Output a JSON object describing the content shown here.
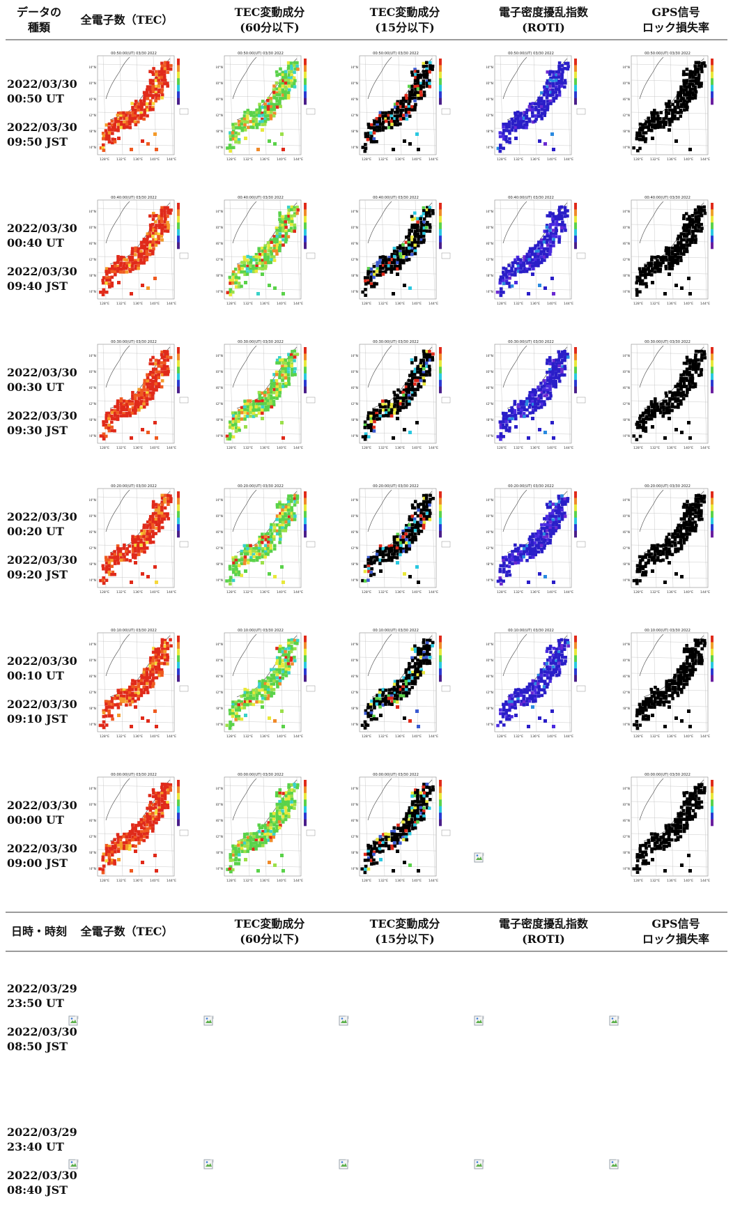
{
  "headers_top": [
    {
      "line1": "データの",
      "line2": "種類"
    },
    {
      "line1": "全電子数（TEC）",
      "line2": ""
    },
    {
      "line1": "TEC変動成分",
      "line2": "(60分以下)"
    },
    {
      "line1": "TEC変動成分",
      "line2": "(15分以下)"
    },
    {
      "line1": "電子密度擾乱指数",
      "line2": "(ROTI)"
    },
    {
      "line1": "GPS信号",
      "line2": "ロック損失率"
    }
  ],
  "headers_bottom": [
    {
      "line1": "日時・時刻",
      "line2": ""
    },
    {
      "line1": "全電子数（TEC）",
      "line2": ""
    },
    {
      "line1": "TEC変動成分",
      "line2": "(60分以下)"
    },
    {
      "line1": "TEC変動成分",
      "line2": "(15分以下)"
    },
    {
      "line1": "電子密度擾乱指数",
      "line2": "(ROTI)"
    },
    {
      "line1": "GPS信号",
      "line2": "ロック損失率"
    }
  ],
  "rows": [
    {
      "ut_date": "2022/03/30",
      "ut_time": "00:50 UT",
      "jst_date": "2022/03/30",
      "jst_time": "09:50 JST",
      "map_title": "00:50:00(UT) 03/30 2022"
    },
    {
      "ut_date": "2022/03/30",
      "ut_time": "00:40 UT",
      "jst_date": "2022/03/30",
      "jst_time": "09:40 JST",
      "map_title": "00:40:00(UT) 03/30 2022"
    },
    {
      "ut_date": "2022/03/30",
      "ut_time": "00:30 UT",
      "jst_date": "2022/03/30",
      "jst_time": "09:30 JST",
      "map_title": "00:30:00(UT) 03/30 2022"
    },
    {
      "ut_date": "2022/03/30",
      "ut_time": "00:20 UT",
      "jst_date": "2022/03/30",
      "jst_time": "09:20 JST",
      "map_title": "00:20:00(UT) 03/30 2022"
    },
    {
      "ut_date": "2022/03/30",
      "ut_time": "00:10 UT",
      "jst_date": "2022/03/30",
      "jst_time": "09:10 JST",
      "map_title": "00:10:00(UT) 03/30 2022"
    },
    {
      "ut_date": "2022/03/30",
      "ut_time": "00:00 UT",
      "jst_date": "2022/03/30",
      "jst_time": "09:00 JST",
      "map_title": "00:00:00(UT) 03/30 2022"
    }
  ],
  "rows_lower": [
    {
      "ut_date": "2022/03/29",
      "ut_time": "23:50 UT",
      "jst_date": "2022/03/30",
      "jst_time": "08:50 JST"
    },
    {
      "ut_date": "2022/03/29",
      "ut_time": "23:40 UT",
      "jst_date": "2022/03/30",
      "jst_time": "08:40 JST"
    }
  ],
  "map_axis": {
    "lat_labels": [
      "44°N",
      "40°N",
      "36°N",
      "32°N",
      "28°N",
      "24°N"
    ],
    "lon_labels": [
      "128°E",
      "132°E",
      "136°E",
      "140°E",
      "144°E"
    ]
  },
  "map_kinds": [
    "tec",
    "tec60",
    "tec15",
    "roti",
    "lol"
  ],
  "colors": {
    "tec": "#e0301c",
    "tec60": "#4fc84a",
    "tec15": "#000000",
    "roti": "#2a1ec8",
    "lol": "#000000",
    "header_rule": "#9a9a9a"
  }
}
